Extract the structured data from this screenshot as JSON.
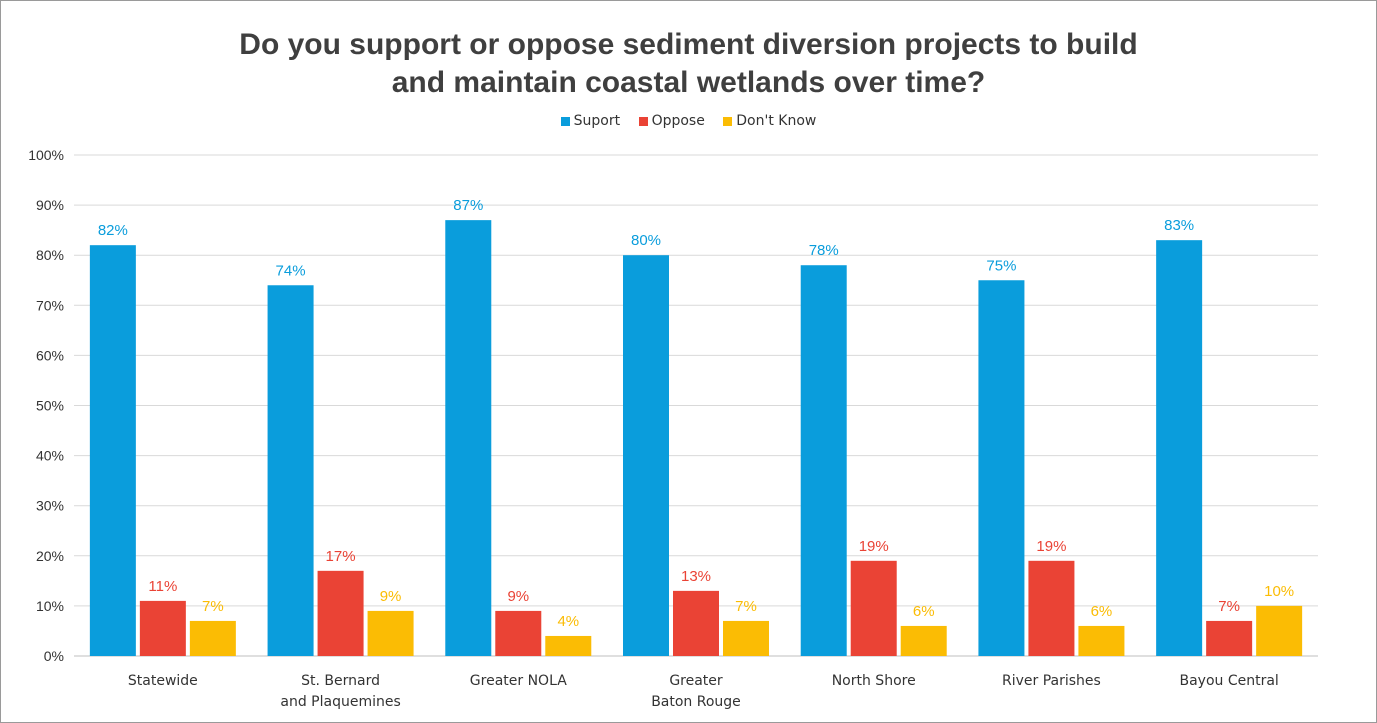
{
  "chart_data": {
    "type": "bar",
    "title": "Do you support or oppose sediment diversion projects to build and maintain coastal wetlands over time?",
    "title_lines": [
      "Do you support or oppose sediment diversion projects to build",
      "and maintain coastal wetlands over time?"
    ],
    "categories": [
      [
        "Statewide"
      ],
      [
        "St. Bernard",
        "and Plaquemines"
      ],
      [
        "Greater NOLA"
      ],
      [
        "Greater",
        "Baton Rouge"
      ],
      [
        "North Shore"
      ],
      [
        "River Parishes"
      ],
      [
        "Bayou Central"
      ]
    ],
    "series": [
      {
        "name": "Suport",
        "color": "#0a9ddc",
        "values": [
          82,
          74,
          87,
          80,
          78,
          75,
          83
        ]
      },
      {
        "name": "Oppose",
        "color": "#ea4335",
        "values": [
          11,
          17,
          9,
          13,
          19,
          19,
          7
        ]
      },
      {
        "name": "Don't Know",
        "color": "#fbbc04",
        "values": [
          7,
          9,
          4,
          7,
          6,
          6,
          10
        ]
      }
    ],
    "ylim": [
      0,
      100
    ],
    "yticks": [
      0,
      10,
      20,
      30,
      40,
      50,
      60,
      70,
      80,
      90,
      100
    ],
    "value_suffix": "%",
    "legend_position": "top",
    "grid": true,
    "data_labels": true
  }
}
